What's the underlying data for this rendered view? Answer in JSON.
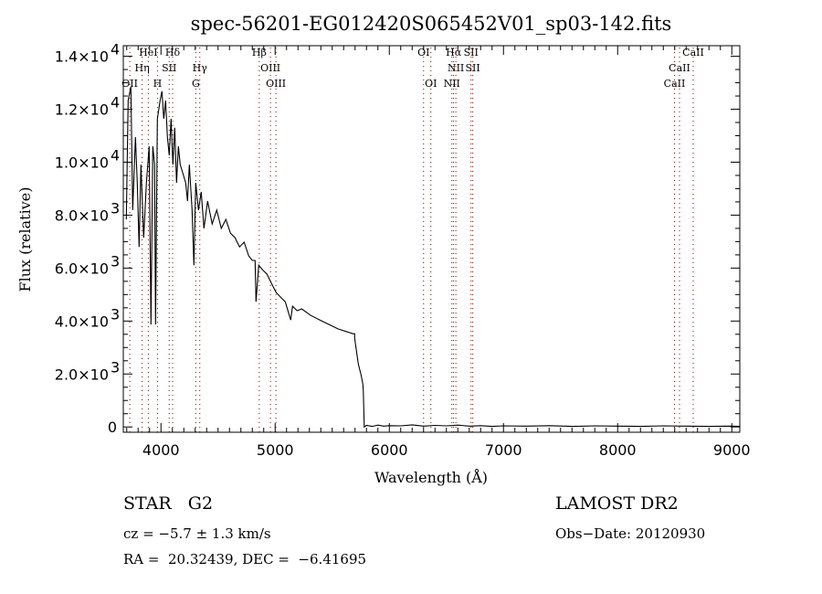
{
  "chart_data": {
    "type": "line",
    "title": "spec-56201-EG012420S065452V01_sp03-142.fits",
    "xlabel": "Wavelength (Å)",
    "ylabel": "Flux (relative)",
    "xlim": [
      3670,
      9070
    ],
    "ylim": [
      -200,
      14400
    ],
    "grid": false,
    "x_ticks": [
      {
        "value": 4000,
        "label": "4000"
      },
      {
        "value": 5000,
        "label": "5000"
      },
      {
        "value": 6000,
        "label": "6000"
      },
      {
        "value": 7000,
        "label": "7000"
      },
      {
        "value": 8000,
        "label": "8000"
      },
      {
        "value": 9000,
        "label": "9000"
      }
    ],
    "x_minor_step": 100,
    "y_ticks": [
      {
        "value": 0,
        "mantissa": "0",
        "exponent": ""
      },
      {
        "value": 2000,
        "mantissa": "2.0×10",
        "exponent": "3"
      },
      {
        "value": 4000,
        "mantissa": "4.0×10",
        "exponent": "3"
      },
      {
        "value": 6000,
        "mantissa": "6.0×10",
        "exponent": "3"
      },
      {
        "value": 8000,
        "mantissa": "8.0×10",
        "exponent": "3"
      },
      {
        "value": 10000,
        "mantissa": "1.0×10",
        "exponent": "4"
      },
      {
        "value": 12000,
        "mantissa": "1.2×10",
        "exponent": "4"
      },
      {
        "value": 14000,
        "mantissa": "1.4×10",
        "exponent": "4"
      }
    ],
    "y_minor_step": 500,
    "series": [
      {
        "name": "spectrum",
        "color": "#000000",
        "x": [
          3696,
          3712,
          3736,
          3752,
          3776,
          3792,
          3808,
          3824,
          3848,
          3872,
          3896,
          3912,
          3928,
          3944,
          3952,
          3968,
          3992,
          4008,
          4024,
          4040,
          4056,
          4072,
          4088,
          4104,
          4120,
          4136,
          4152,
          4168,
          4192,
          4216,
          4232,
          4248,
          4272,
          4288,
          4304,
          4328,
          4352,
          4376,
          4408,
          4448,
          4488,
          4528,
          4568,
          4608,
          4648,
          4688,
          4728,
          4768,
          4800,
          4824,
          4832,
          4856,
          4888,
          4928,
          4968,
          5008,
          5048,
          5088,
          5136,
          5152,
          5192,
          5232,
          5312,
          5392,
          5472,
          5552,
          5632,
          5680,
          5696,
          5696,
          5728,
          5752,
          5768,
          5772,
          5780,
          5800,
          5850,
          5900,
          5950,
          6000,
          6100,
          6200,
          6300,
          6400,
          6500,
          6600,
          6700,
          6800,
          6900,
          7000,
          7200,
          7400,
          7600,
          7800,
          8000,
          8200,
          8400,
          8600,
          8800,
          9000,
          9070
        ],
        "y": [
          7840,
          12330,
          12850,
          8190,
          10950,
          9220,
          6800,
          9910,
          7150,
          9220,
          10600,
          3870,
          10600,
          9910,
          3870,
          11640,
          12330,
          12680,
          11640,
          12330,
          10950,
          10260,
          11640,
          9910,
          11300,
          9220,
          10600,
          9910,
          9570,
          9220,
          8530,
          9910,
          8190,
          6110,
          9220,
          8190,
          8880,
          7500,
          8530,
          7670,
          8190,
          7500,
          7840,
          7320,
          7150,
          6800,
          6980,
          6460,
          6290,
          6290,
          4730,
          6110,
          5940,
          5770,
          5420,
          5080,
          4900,
          4730,
          4040,
          4560,
          4390,
          4460,
          4210,
          4040,
          3870,
          3700,
          3590,
          3520,
          3520,
          3350,
          2380,
          1970,
          1620,
          1350,
          0,
          60,
          20,
          70,
          30,
          50,
          40,
          80,
          30,
          60,
          40,
          70,
          30,
          50,
          20,
          40,
          30,
          50,
          20,
          40,
          30,
          20,
          40,
          30,
          20,
          30,
          20
        ]
      }
    ],
    "line_labels": [
      {
        "label": "HeI",
        "wavelength": 3889,
        "row": 1
      },
      {
        "label": "Hδ",
        "wavelength": 4102,
        "row": 1
      },
      {
        "label": "Hβ",
        "wavelength": 4861,
        "row": 1
      },
      {
        "label": "OI",
        "wavelength": 6300,
        "row": 1
      },
      {
        "label": "Hα",
        "wavelength": 6563,
        "row": 1
      },
      {
        "label": "SII",
        "wavelength": 6716,
        "row": 1
      },
      {
        "label": "CaII",
        "wavelength": 8662,
        "row": 1
      },
      {
        "label": "Hη",
        "wavelength": 3835,
        "row": 2
      },
      {
        "label": "SII",
        "wavelength": 4072,
        "row": 2
      },
      {
        "label": "Hγ",
        "wavelength": 4340,
        "row": 2
      },
      {
        "label": "OIII",
        "wavelength": 4959,
        "row": 2
      },
      {
        "label": "NII",
        "wavelength": 6583,
        "row": 2
      },
      {
        "label": "SII",
        "wavelength": 6731,
        "row": 2
      },
      {
        "label": "CaII",
        "wavelength": 8542,
        "row": 2
      },
      {
        "label": "OII",
        "wavelength": 3727,
        "row": 3
      },
      {
        "label": "H",
        "wavelength": 3969,
        "row": 3
      },
      {
        "label": "G",
        "wavelength": 4305,
        "row": 3
      },
      {
        "label": "OIII",
        "wavelength": 5007,
        "row": 3
      },
      {
        "label": "OI",
        "wavelength": 6364,
        "row": 3
      },
      {
        "label": "NII",
        "wavelength": 6548,
        "row": 3
      },
      {
        "label": "CaII",
        "wavelength": 8498,
        "row": 3
      }
    ],
    "line_marker_color": "#8b0000"
  },
  "info": {
    "class_label": "STAR   G2",
    "cz": "cz = −5.7 ± 1.3 km/s",
    "coords": "RA =  20.32439, DEC =  −6.41695",
    "survey": "LAMOST DR2",
    "obs_date": "Obs−Date: 20120930"
  }
}
